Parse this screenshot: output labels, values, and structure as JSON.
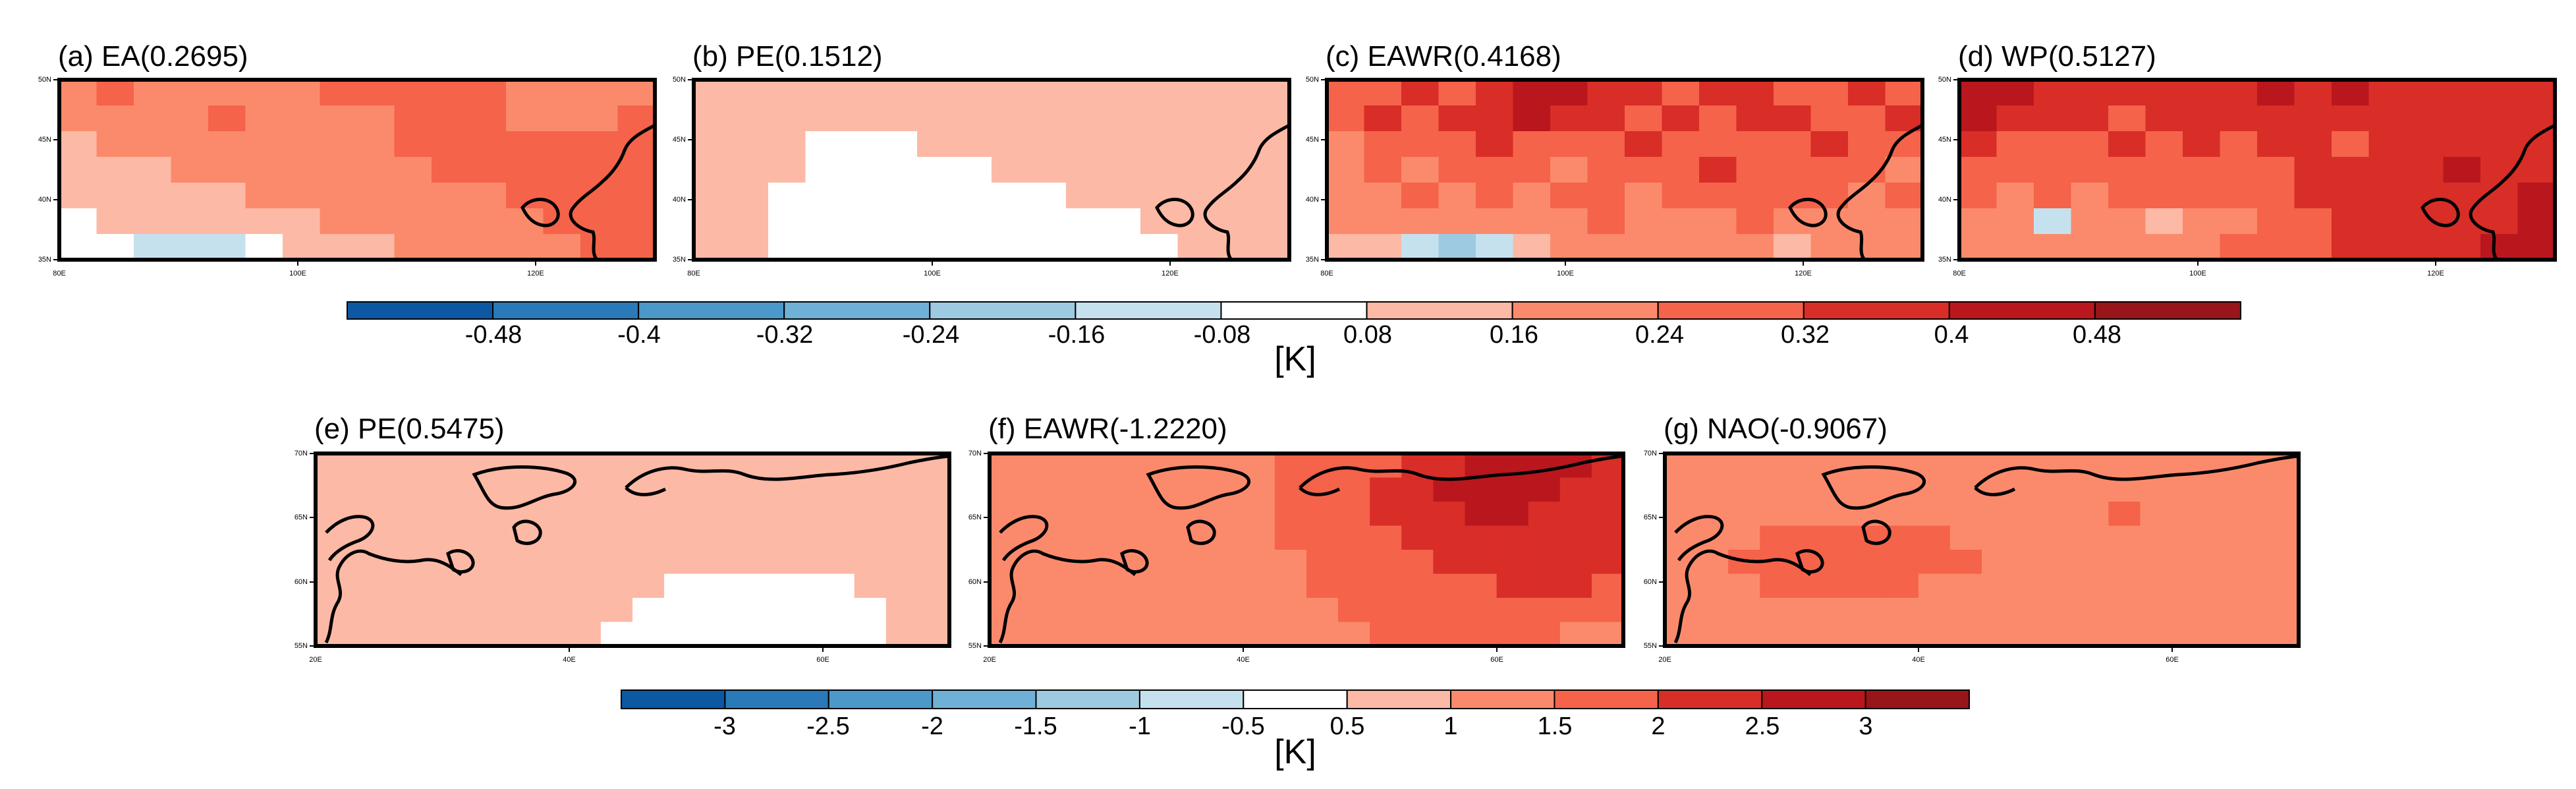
{
  "figure": {
    "colors": {
      "warm": [
        "#fcb9a6",
        "#fb8a6c",
        "#f4634a",
        "#d92d27",
        "#b9171d",
        "#981519"
      ],
      "cool": [
        "#0d58a2",
        "#2a79b9",
        "#4b98c9",
        "#6fb0d6",
        "#9ecae1",
        "#c5e1ee"
      ],
      "white": "#ffffff",
      "coast": "#000000"
    }
  },
  "chart_data": [
    {
      "type": "heatmap",
      "title": "(a) EA(0.2695)",
      "lon_range": [
        80,
        130
      ],
      "lat_range": [
        35,
        50
      ],
      "x_ticks": [
        "80E",
        "100E",
        "120E"
      ],
      "y_ticks": [
        "35N",
        "40N",
        "45N",
        "50N"
      ],
      "grid_rows": [
        [
          2,
          3,
          2,
          2,
          2,
          2,
          2,
          3,
          3,
          3,
          3,
          3,
          2,
          2,
          2,
          2
        ],
        [
          2,
          2,
          2,
          2,
          3,
          2,
          2,
          2,
          2,
          3,
          3,
          3,
          2,
          2,
          2,
          3
        ],
        [
          1,
          2,
          2,
          2,
          2,
          2,
          2,
          2,
          2,
          3,
          3,
          3,
          3,
          3,
          3,
          3
        ],
        [
          1,
          1,
          1,
          2,
          2,
          2,
          2,
          2,
          2,
          2,
          3,
          3,
          3,
          3,
          3,
          3
        ],
        [
          1,
          1,
          1,
          1,
          1,
          2,
          2,
          2,
          2,
          2,
          2,
          2,
          3,
          3,
          3,
          3
        ],
        [
          0,
          1,
          1,
          1,
          1,
          1,
          1,
          2,
          2,
          2,
          2,
          2,
          2,
          3,
          3,
          3
        ],
        [
          0,
          0,
          -1,
          -1,
          -1,
          0,
          1,
          1,
          1,
          2,
          2,
          2,
          2,
          2,
          3,
          3
        ]
      ]
    },
    {
      "type": "heatmap",
      "title": "(b) PE(0.1512)",
      "lon_range": [
        80,
        130
      ],
      "lat_range": [
        35,
        50
      ],
      "x_ticks": [
        "80E",
        "100E",
        "120E"
      ],
      "y_ticks": [
        "35N",
        "40N",
        "45N",
        "50N"
      ],
      "grid_rows": [
        [
          1,
          1,
          1,
          1,
          1,
          1,
          1,
          1,
          1,
          1,
          1,
          1,
          1,
          1,
          1,
          1
        ],
        [
          1,
          1,
          1,
          1,
          1,
          1,
          1,
          1,
          1,
          1,
          1,
          1,
          1,
          1,
          1,
          1
        ],
        [
          1,
          1,
          1,
          0,
          0,
          0,
          1,
          1,
          1,
          1,
          1,
          1,
          1,
          1,
          1,
          1
        ],
        [
          1,
          1,
          1,
          0,
          0,
          0,
          0,
          0,
          1,
          1,
          1,
          1,
          1,
          1,
          1,
          1
        ],
        [
          1,
          1,
          0,
          0,
          0,
          0,
          0,
          0,
          0,
          0,
          1,
          1,
          1,
          1,
          1,
          1
        ],
        [
          1,
          1,
          0,
          0,
          0,
          0,
          0,
          0,
          0,
          0,
          0,
          0,
          1,
          1,
          1,
          1
        ],
        [
          1,
          1,
          0,
          0,
          0,
          0,
          0,
          0,
          0,
          0,
          0,
          0,
          0,
          1,
          1,
          1
        ]
      ]
    },
    {
      "type": "heatmap",
      "title": "(c) EAWR(0.4168)",
      "lon_range": [
        80,
        130
      ],
      "lat_range": [
        35,
        50
      ],
      "x_ticks": [
        "80E",
        "100E",
        "120E"
      ],
      "y_ticks": [
        "35N",
        "40N",
        "45N",
        "50N"
      ],
      "grid_rows": [
        [
          3,
          3,
          4,
          3,
          4,
          5,
          5,
          4,
          4,
          3,
          4,
          4,
          3,
          3,
          4,
          3
        ],
        [
          3,
          4,
          3,
          4,
          4,
          5,
          4,
          4,
          3,
          4,
          3,
          4,
          4,
          3,
          3,
          4
        ],
        [
          2,
          3,
          3,
          3,
          4,
          3,
          3,
          3,
          4,
          3,
          3,
          3,
          3,
          4,
          3,
          3
        ],
        [
          2,
          3,
          2,
          3,
          3,
          3,
          2,
          3,
          3,
          3,
          4,
          3,
          3,
          3,
          3,
          2
        ],
        [
          2,
          2,
          3,
          2,
          3,
          2,
          3,
          3,
          2,
          3,
          3,
          3,
          3,
          3,
          2,
          3
        ],
        [
          2,
          2,
          2,
          2,
          2,
          2,
          2,
          3,
          2,
          2,
          2,
          3,
          2,
          2,
          2,
          2
        ],
        [
          1,
          1,
          -1,
          -2,
          -1,
          1,
          2,
          2,
          2,
          2,
          2,
          2,
          1,
          2,
          2,
          2
        ]
      ]
    },
    {
      "type": "heatmap",
      "title": "(d) WP(0.5127)",
      "lon_range": [
        80,
        130
      ],
      "lat_range": [
        35,
        50
      ],
      "x_ticks": [
        "80E",
        "100E",
        "120E"
      ],
      "y_ticks": [
        "35N",
        "40N",
        "45N",
        "50N"
      ],
      "grid_rows": [
        [
          5,
          5,
          4,
          4,
          4,
          4,
          4,
          4,
          5,
          4,
          5,
          4,
          4,
          4,
          4,
          4
        ],
        [
          5,
          4,
          4,
          4,
          3,
          4,
          4,
          4,
          4,
          4,
          4,
          4,
          4,
          4,
          4,
          4
        ],
        [
          4,
          3,
          3,
          3,
          4,
          3,
          4,
          3,
          4,
          4,
          3,
          4,
          4,
          4,
          4,
          4
        ],
        [
          3,
          3,
          3,
          3,
          3,
          3,
          3,
          3,
          3,
          4,
          4,
          4,
          4,
          5,
          4,
          4
        ],
        [
          3,
          2,
          3,
          2,
          3,
          3,
          3,
          3,
          3,
          4,
          4,
          4,
          4,
          4,
          4,
          5
        ],
        [
          2,
          2,
          -1,
          2,
          2,
          1,
          2,
          2,
          3,
          3,
          4,
          4,
          4,
          4,
          4,
          5
        ],
        [
          2,
          2,
          2,
          2,
          2,
          2,
          2,
          3,
          3,
          3,
          4,
          4,
          4,
          4,
          5,
          5
        ]
      ]
    },
    {
      "type": "heatmap",
      "title": "(e) PE(0.5475)",
      "lon_range": [
        20,
        70
      ],
      "lat_range": [
        55,
        70
      ],
      "x_ticks": [
        "20E",
        "40E",
        "60E"
      ],
      "y_ticks": [
        "55N",
        "60N",
        "65N",
        "70N"
      ],
      "grid_rows": [
        [
          1,
          1,
          1,
          1,
          1,
          1,
          1,
          1,
          1,
          1,
          1,
          1,
          1,
          1,
          1,
          1,
          1,
          1,
          1,
          1
        ],
        [
          1,
          1,
          1,
          1,
          1,
          1,
          1,
          1,
          1,
          1,
          1,
          1,
          1,
          1,
          1,
          1,
          1,
          1,
          1,
          1
        ],
        [
          1,
          1,
          1,
          1,
          1,
          1,
          1,
          1,
          1,
          1,
          1,
          1,
          1,
          1,
          1,
          1,
          1,
          1,
          1,
          1
        ],
        [
          1,
          1,
          1,
          1,
          1,
          1,
          1,
          1,
          1,
          1,
          1,
          1,
          1,
          1,
          1,
          1,
          1,
          1,
          1,
          1
        ],
        [
          1,
          1,
          1,
          1,
          1,
          1,
          1,
          1,
          1,
          1,
          1,
          1,
          1,
          1,
          1,
          1,
          1,
          1,
          1,
          1
        ],
        [
          1,
          1,
          1,
          1,
          1,
          1,
          1,
          1,
          1,
          1,
          1,
          0,
          0,
          0,
          0,
          0,
          0,
          1,
          1,
          1
        ],
        [
          1,
          1,
          1,
          1,
          1,
          1,
          1,
          1,
          1,
          1,
          0,
          0,
          0,
          0,
          0,
          0,
          0,
          0,
          1,
          1
        ],
        [
          1,
          1,
          1,
          1,
          1,
          1,
          1,
          1,
          1,
          0,
          0,
          0,
          0,
          0,
          0,
          0,
          0,
          0,
          1,
          1
        ]
      ]
    },
    {
      "type": "heatmap",
      "title": "(f) EAWR(-1.2220)",
      "lon_range": [
        20,
        70
      ],
      "lat_range": [
        55,
        70
      ],
      "x_ticks": [
        "20E",
        "40E",
        "60E"
      ],
      "y_ticks": [
        "55N",
        "60N",
        "65N",
        "70N"
      ],
      "grid_rows": [
        [
          2,
          2,
          2,
          2,
          2,
          2,
          2,
          2,
          2,
          3,
          3,
          3,
          3,
          4,
          4,
          5,
          5,
          5,
          5,
          4
        ],
        [
          2,
          2,
          2,
          2,
          2,
          2,
          2,
          2,
          2,
          3,
          3,
          3,
          4,
          4,
          5,
          5,
          5,
          5,
          4,
          4
        ],
        [
          2,
          2,
          2,
          2,
          2,
          2,
          2,
          2,
          2,
          3,
          3,
          3,
          4,
          4,
          4,
          5,
          5,
          4,
          4,
          4
        ],
        [
          2,
          2,
          2,
          2,
          2,
          2,
          2,
          2,
          2,
          3,
          3,
          3,
          3,
          4,
          4,
          4,
          4,
          4,
          4,
          4
        ],
        [
          2,
          2,
          2,
          2,
          2,
          2,
          2,
          2,
          2,
          2,
          3,
          3,
          3,
          3,
          4,
          4,
          4,
          4,
          4,
          4
        ],
        [
          2,
          2,
          2,
          2,
          2,
          2,
          2,
          2,
          2,
          2,
          3,
          3,
          3,
          3,
          3,
          3,
          4,
          4,
          4,
          3
        ],
        [
          2,
          2,
          2,
          2,
          2,
          2,
          2,
          2,
          2,
          2,
          2,
          3,
          3,
          3,
          3,
          3,
          3,
          3,
          3,
          3
        ],
        [
          2,
          2,
          2,
          2,
          2,
          2,
          2,
          2,
          2,
          2,
          2,
          2,
          3,
          3,
          3,
          3,
          3,
          3,
          2,
          2
        ]
      ]
    },
    {
      "type": "heatmap",
      "title": "(g) NAO(-0.9067)",
      "lon_range": [
        20,
        70
      ],
      "lat_range": [
        55,
        70
      ],
      "x_ticks": [
        "20E",
        "40E",
        "60E"
      ],
      "y_ticks": [
        "55N",
        "60N",
        "65N",
        "70N"
      ],
      "grid_rows": [
        [
          2,
          2,
          2,
          2,
          2,
          2,
          2,
          2,
          2,
          2,
          2,
          2,
          2,
          2,
          2,
          2,
          2,
          2,
          2,
          2
        ],
        [
          2,
          2,
          2,
          2,
          2,
          2,
          2,
          2,
          2,
          2,
          2,
          2,
          2,
          2,
          2,
          2,
          2,
          2,
          2,
          2
        ],
        [
          2,
          2,
          2,
          2,
          2,
          2,
          2,
          2,
          2,
          2,
          2,
          2,
          2,
          2,
          3,
          2,
          2,
          2,
          2,
          2
        ],
        [
          2,
          2,
          2,
          3,
          3,
          3,
          3,
          3,
          3,
          2,
          2,
          2,
          2,
          2,
          2,
          2,
          2,
          2,
          2,
          2
        ],
        [
          2,
          2,
          3,
          3,
          3,
          3,
          3,
          3,
          3,
          3,
          2,
          2,
          2,
          2,
          2,
          2,
          2,
          2,
          2,
          2
        ],
        [
          2,
          2,
          2,
          3,
          3,
          3,
          3,
          3,
          2,
          2,
          2,
          2,
          2,
          2,
          2,
          2,
          2,
          2,
          2,
          2
        ],
        [
          2,
          2,
          2,
          2,
          2,
          2,
          2,
          2,
          2,
          2,
          2,
          2,
          2,
          2,
          2,
          2,
          2,
          2,
          2,
          2
        ],
        [
          2,
          2,
          2,
          2,
          2,
          2,
          2,
          2,
          2,
          2,
          2,
          2,
          2,
          2,
          2,
          2,
          2,
          2,
          2,
          2
        ]
      ]
    },
    {
      "type": "colorbar",
      "title": "[K]",
      "tick_labels": [
        "-0.48",
        "-0.4",
        "-0.32",
        "-0.24",
        "-0.16",
        "-0.08",
        "0.08",
        "0.16",
        "0.24",
        "0.32",
        "0.4",
        "0.48"
      ]
    },
    {
      "type": "colorbar",
      "title": "[K]",
      "tick_labels": [
        "-3",
        "-2.5",
        "-2",
        "-1.5",
        "-1",
        "-0.5",
        "0.5",
        "1",
        "1.5",
        "2",
        "2.5",
        "3"
      ]
    }
  ]
}
